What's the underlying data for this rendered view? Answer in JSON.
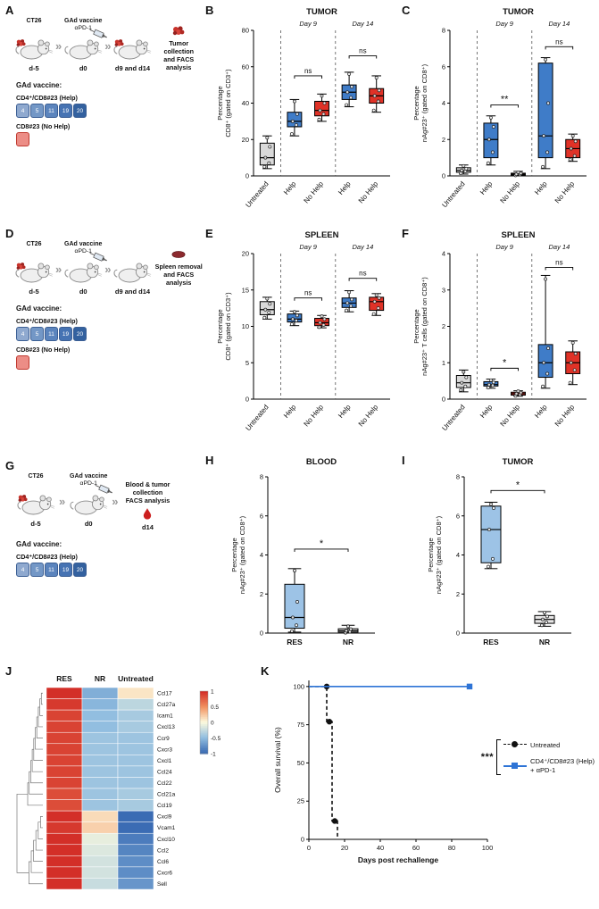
{
  "icons": {
    "arrow": "»"
  },
  "panels": {
    "A": {
      "letter": "A",
      "cell_line": "CT26",
      "vaccine_label": "GAd vaccine",
      "apd1": "αPD-1",
      "outcome": "Tumor collection\nand FACS\nanalysis",
      "timeline": [
        "d-5",
        "d0",
        "d9 and d14"
      ],
      "vaccine_header": "GAd vaccine:",
      "help_label": "CD4⁺/CD8#23 (Help)",
      "help_boxes": [
        "4",
        "5",
        "11",
        "19",
        "20"
      ],
      "nohelp_label": "CD8#23 (No Help)"
    },
    "B": {
      "letter": "B"
    },
    "C": {
      "letter": "C"
    },
    "D": {
      "letter": "D",
      "cell_line": "CT26",
      "vaccine_label": "GAd vaccine",
      "apd1": "αPD-1",
      "outcome": "Spleen removal\nand FACS\nanalysis",
      "timeline": [
        "d-5",
        "d0",
        "d9 and d14"
      ],
      "vaccine_header": "GAd vaccine:",
      "help_label": "CD4⁺/CD8#23 (Help)",
      "help_boxes": [
        "4",
        "5",
        "11",
        "19",
        "20"
      ],
      "nohelp_label": "CD8#23 (No Help)"
    },
    "E": {
      "letter": "E"
    },
    "F": {
      "letter": "F"
    },
    "G": {
      "letter": "G",
      "cell_line": "CT26",
      "vaccine_label": "GAd vaccine",
      "apd1": "αPD-1",
      "outcome": "Blood & tumor\ncollection\nFACS analysis",
      "timeline": [
        "d-5",
        "d0",
        "d14"
      ],
      "vaccine_header": "GAd vaccine:",
      "help_label": "CD4⁺/CD8#23 (Help)",
      "help_boxes": [
        "4",
        "5",
        "11",
        "19",
        "20"
      ]
    },
    "H": {
      "letter": "H"
    },
    "I": {
      "letter": "I"
    },
    "J": {
      "letter": "J"
    },
    "K": {
      "letter": "K"
    }
  },
  "chart_data": [
    {
      "id": "B",
      "type": "box",
      "title": "TUMOR",
      "ylabel": [
        "Percentage",
        "CD8⁺ (gated on CD3⁺)"
      ],
      "ylim": [
        0,
        80
      ],
      "yticks": [
        0,
        20,
        40,
        60,
        80
      ],
      "categories": [
        "Untreated",
        "Help",
        "No Help",
        "Help",
        "No Help"
      ],
      "colors": [
        "#d9d9d9",
        "#3f7cc8",
        "#e03227",
        "#3f7cc8",
        "#e03227"
      ],
      "boxes": [
        {
          "whislo": 4,
          "q1": 6,
          "med": 10,
          "q3": 18,
          "whishi": 22,
          "points": [
            5,
            7,
            10,
            16,
            21
          ]
        },
        {
          "whislo": 22,
          "q1": 27,
          "med": 30,
          "q3": 35,
          "whishi": 42,
          "points": [
            23,
            28,
            30,
            34,
            41
          ]
        },
        {
          "whislo": 30,
          "q1": 33,
          "med": 36,
          "q3": 41,
          "whishi": 45,
          "points": [
            31,
            34,
            36,
            40,
            44
          ]
        },
        {
          "whislo": 38,
          "q1": 42,
          "med": 46,
          "q3": 50,
          "whishi": 57,
          "points": [
            39,
            43,
            46,
            49,
            56
          ]
        },
        {
          "whislo": 35,
          "q1": 40,
          "med": 44,
          "q3": 48,
          "whishi": 55,
          "points": [
            36,
            41,
            44,
            47,
            54
          ]
        }
      ],
      "groups": [
        {
          "label": "Day 9",
          "from": 1,
          "to": 2
        },
        {
          "label": "Day 14",
          "from": 3,
          "to": 4
        }
      ],
      "dividers": [
        0.5,
        2.5
      ],
      "sig": [
        {
          "from": 1,
          "to": 2,
          "y": 55,
          "label": "ns"
        },
        {
          "from": 3,
          "to": 4,
          "y": 66,
          "label": "ns"
        }
      ]
    },
    {
      "id": "C",
      "type": "box",
      "title": "TUMOR",
      "ylabel": [
        "Percentage",
        "nAg#23⁺ (gated on CD8⁺)"
      ],
      "ylim": [
        0,
        8
      ],
      "yticks": [
        0,
        2,
        4,
        6,
        8
      ],
      "categories": [
        "Untreated",
        "Help",
        "No Help",
        "Help",
        "No Help"
      ],
      "colors": [
        "#d9d9d9",
        "#3f7cc8",
        "#e03227",
        "#3f7cc8",
        "#e03227"
      ],
      "boxes": [
        {
          "whislo": 0.1,
          "q1": 0.2,
          "med": 0.3,
          "q3": 0.45,
          "whishi": 0.6,
          "points": [
            0.15,
            0.25,
            0.3,
            0.4,
            0.55
          ]
        },
        {
          "whislo": 0.6,
          "q1": 1.0,
          "med": 2.0,
          "q3": 2.9,
          "whishi": 3.3,
          "points": [
            0.7,
            1.3,
            2.0,
            2.7,
            3.2
          ]
        },
        {
          "whislo": 0.02,
          "q1": 0.05,
          "med": 0.1,
          "q3": 0.15,
          "whishi": 0.25,
          "points": [
            0.03,
            0.08,
            0.1,
            0.14,
            0.2
          ]
        },
        {
          "whislo": 0.4,
          "q1": 1.0,
          "med": 2.2,
          "q3": 6.2,
          "whishi": 6.5,
          "points": [
            0.5,
            1.3,
            2.2,
            4.0,
            6.4
          ]
        },
        {
          "whislo": 0.8,
          "q1": 1.0,
          "med": 1.5,
          "q3": 2.0,
          "whishi": 2.3,
          "points": [
            0.9,
            1.1,
            1.5,
            1.9,
            2.2
          ]
        }
      ],
      "groups": [
        {
          "label": "Day 9",
          "from": 1,
          "to": 2
        },
        {
          "label": "Day 14",
          "from": 3,
          "to": 4
        }
      ],
      "dividers": [
        0.5,
        2.5
      ],
      "sig": [
        {
          "from": 1,
          "to": 2,
          "y": 3.9,
          "label": "**"
        },
        {
          "from": 3,
          "to": 4,
          "y": 7.1,
          "label": "ns"
        }
      ]
    },
    {
      "id": "E",
      "type": "box",
      "title": "SPLEEN",
      "ylabel": [
        "Percentage",
        "CD8⁺ (gated on CD3⁺)"
      ],
      "ylim": [
        0,
        20
      ],
      "yticks": [
        0,
        5,
        10,
        15,
        20
      ],
      "categories": [
        "Untreated",
        "Help",
        "No Help",
        "Help",
        "No Help"
      ],
      "colors": [
        "#d9d9d9",
        "#3f7cc8",
        "#e03227",
        "#3f7cc8",
        "#e03227"
      ],
      "boxes": [
        {
          "whislo": 11.0,
          "q1": 11.6,
          "med": 12.3,
          "q3": 13.4,
          "whishi": 14.0,
          "points": [
            11.2,
            11.9,
            12.3,
            13.1,
            13.8
          ]
        },
        {
          "whislo": 10.1,
          "q1": 10.6,
          "med": 11.0,
          "q3": 11.7,
          "whishi": 12.1,
          "points": [
            10.3,
            10.8,
            11.0,
            11.5,
            12.0
          ]
        },
        {
          "whislo": 9.8,
          "q1": 10.1,
          "med": 10.5,
          "q3": 11.1,
          "whishi": 11.5,
          "points": [
            9.9,
            10.2,
            10.5,
            11.0,
            11.4
          ]
        },
        {
          "whislo": 12.0,
          "q1": 12.6,
          "med": 13.2,
          "q3": 13.9,
          "whishi": 14.9,
          "points": [
            12.2,
            12.8,
            13.2,
            13.7,
            14.7
          ]
        },
        {
          "whislo": 11.5,
          "q1": 12.2,
          "med": 13.4,
          "q3": 14.0,
          "whishi": 14.5,
          "points": [
            11.7,
            12.5,
            13.4,
            13.9,
            14.3
          ]
        }
      ],
      "groups": [
        {
          "label": "Day 9",
          "from": 1,
          "to": 2
        },
        {
          "label": "Day 14",
          "from": 3,
          "to": 4
        }
      ],
      "dividers": [
        0.5,
        2.5
      ],
      "sig": [
        {
          "from": 1,
          "to": 2,
          "y": 13.9,
          "label": "ns"
        },
        {
          "from": 3,
          "to": 4,
          "y": 16.6,
          "label": "ns"
        }
      ]
    },
    {
      "id": "F",
      "type": "box",
      "title": "SPLEEN",
      "ylabel": [
        "Percentage",
        "nAg#23⁺ T cells (gated on CD8⁺)"
      ],
      "ylim": [
        0,
        4
      ],
      "yticks": [
        0,
        1,
        2,
        3,
        4
      ],
      "categories": [
        "Untreated",
        "Help",
        "No Help",
        "Help",
        "No Help"
      ],
      "colors": [
        "#d9d9d9",
        "#3f7cc8",
        "#e03227",
        "#3f7cc8",
        "#e03227"
      ],
      "boxes": [
        {
          "whislo": 0.2,
          "q1": 0.32,
          "med": 0.45,
          "q3": 0.65,
          "whishi": 0.8,
          "points": [
            0.25,
            0.35,
            0.45,
            0.6,
            0.75
          ]
        },
        {
          "whislo": 0.3,
          "q1": 0.36,
          "med": 0.4,
          "q3": 0.48,
          "whishi": 0.55,
          "points": [
            0.32,
            0.38,
            0.4,
            0.46,
            0.52
          ]
        },
        {
          "whislo": 0.08,
          "q1": 0.11,
          "med": 0.15,
          "q3": 0.19,
          "whishi": 0.23,
          "points": [
            0.09,
            0.12,
            0.15,
            0.18,
            0.22
          ]
        },
        {
          "whislo": 0.3,
          "q1": 0.6,
          "med": 1.0,
          "q3": 1.5,
          "whishi": 3.4,
          "points": [
            0.35,
            0.7,
            1.0,
            1.4,
            3.3
          ]
        },
        {
          "whislo": 0.4,
          "q1": 0.7,
          "med": 1.0,
          "q3": 1.3,
          "whishi": 1.6,
          "points": [
            0.45,
            0.8,
            1.0,
            1.25,
            1.55
          ]
        }
      ],
      "groups": [
        {
          "label": "Day 9",
          "from": 1,
          "to": 2
        },
        {
          "label": "Day 14",
          "from": 3,
          "to": 4
        }
      ],
      "dividers": [
        0.5,
        2.5
      ],
      "sig": [
        {
          "from": 1,
          "to": 2,
          "y": 0.85,
          "label": "*"
        },
        {
          "from": 3,
          "to": 4,
          "y": 3.62,
          "label": "ns"
        }
      ]
    },
    {
      "id": "H",
      "type": "box",
      "title": "BLOOD",
      "flat": true,
      "ylabel": [
        "Percentage",
        "nAg#23⁺ (gated on CD8⁺)"
      ],
      "ylim": [
        0,
        8
      ],
      "yticks": [
        0,
        2,
        4,
        6,
        8
      ],
      "categories": [
        "RES",
        "NR"
      ],
      "colors": [
        "#9dc3e6",
        "#e7e6e6"
      ],
      "boxes": [
        {
          "whislo": 0.05,
          "q1": 0.25,
          "med": 0.8,
          "q3": 2.5,
          "whishi": 3.3,
          "points": [
            0.1,
            0.4,
            0.8,
            1.6,
            3.2
          ]
        },
        {
          "whislo": 0.0,
          "q1": 0.05,
          "med": 0.12,
          "q3": 0.22,
          "whishi": 0.4,
          "points": [
            0.02,
            0.07,
            0.12,
            0.2,
            0.35
          ]
        }
      ],
      "sig": [
        {
          "from": 0,
          "to": 1,
          "y": 4.3,
          "label": "*"
        }
      ]
    },
    {
      "id": "I",
      "type": "box",
      "title": "TUMOR",
      "flat": true,
      "ylabel": [
        "Percentage",
        "nAg#23⁺ (gated on CD8⁺)"
      ],
      "ylim": [
        0,
        8
      ],
      "yticks": [
        0,
        2,
        4,
        6,
        8
      ],
      "categories": [
        "RES",
        "NR"
      ],
      "colors": [
        "#9dc3e6",
        "#e7e6e6"
      ],
      "boxes": [
        {
          "whislo": 3.3,
          "q1": 3.6,
          "med": 5.3,
          "q3": 6.5,
          "whishi": 6.7,
          "points": [
            3.4,
            3.8,
            5.3,
            6.4,
            6.6
          ]
        },
        {
          "whislo": 0.35,
          "q1": 0.5,
          "med": 0.7,
          "q3": 0.9,
          "whishi": 1.1,
          "points": [
            0.4,
            0.55,
            0.7,
            0.85,
            1.05
          ]
        }
      ],
      "sig": [
        {
          "from": 0,
          "to": 1,
          "y": 7.3,
          "label": "*"
        }
      ]
    },
    {
      "id": "J",
      "type": "heatmap",
      "columns": [
        "RES",
        "NR",
        "Untreated"
      ],
      "rows": [
        "Ccl17",
        "Ccl27a",
        "Icam1",
        "Cxcl13",
        "Ccr9",
        "Cxcr3",
        "Cxcl1",
        "Ccl24",
        "Ccl22",
        "Ccl21a",
        "Ccl19",
        "Cxcl9",
        "Vcam1",
        "Cxcl10",
        "Ccl2",
        "Ccl6",
        "Cxcr6",
        "Sell"
      ],
      "values": [
        [
          1,
          -0.6,
          0.1
        ],
        [
          0.95,
          -0.55,
          -0.3
        ],
        [
          0.9,
          -0.5,
          -0.4
        ],
        [
          0.9,
          -0.5,
          -0.4
        ],
        [
          0.9,
          -0.45,
          -0.45
        ],
        [
          0.9,
          -0.45,
          -0.45
        ],
        [
          0.9,
          -0.45,
          -0.45
        ],
        [
          0.9,
          -0.45,
          -0.45
        ],
        [
          0.9,
          -0.45,
          -0.45
        ],
        [
          0.85,
          -0.45,
          -0.4
        ],
        [
          0.85,
          -0.45,
          -0.4
        ],
        [
          1,
          0.15,
          -1
        ],
        [
          0.95,
          0.2,
          -1
        ],
        [
          1,
          -0.1,
          -0.9
        ],
        [
          1,
          -0.15,
          -0.85
        ],
        [
          1,
          -0.2,
          -0.8
        ],
        [
          1,
          -0.2,
          -0.8
        ],
        [
          1,
          -0.25,
          -0.75
        ]
      ],
      "scale": {
        "min": -1,
        "max": 1,
        "ticks": [
          "1",
          "0.5",
          "0",
          "-0.5",
          "-1"
        ]
      }
    },
    {
      "id": "K",
      "type": "survival",
      "ylabel": "Overall survival (%)",
      "xlabel": "Days post rechallenge",
      "xlim": [
        0,
        100
      ],
      "xticks": [
        0,
        20,
        40,
        60,
        80,
        100
      ],
      "ylim": [
        0,
        104
      ],
      "yticks": [
        0,
        25,
        50,
        75,
        100
      ],
      "sig": "***",
      "series": [
        {
          "name": "Untreated",
          "color": "#111111",
          "dash": true,
          "marker": "circle",
          "path": [
            [
              0,
              100
            ],
            [
              10,
              100
            ],
            [
              10,
              77
            ],
            [
              13,
              77
            ],
            [
              13,
              12
            ],
            [
              16,
              12
            ],
            [
              16,
              0
            ]
          ],
          "markers": [
            [
              10,
              100
            ],
            [
              11.5,
              77
            ],
            [
              14.5,
              12
            ]
          ]
        },
        {
          "name": "CD4⁺/CD8#23 (Help)\n+ αPD-1",
          "color": "#2e74d6",
          "dash": false,
          "marker": "square",
          "path": [
            [
              0,
              100
            ],
            [
              90,
              100
            ]
          ],
          "markers": [
            [
              90,
              100
            ]
          ]
        }
      ]
    }
  ]
}
